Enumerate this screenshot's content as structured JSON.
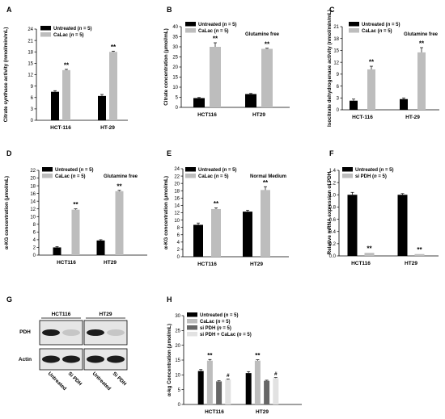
{
  "colors": {
    "black": "#000000",
    "light_grey": "#bdbdbd",
    "dark_grey": "#666666",
    "lighter_grey": "#e2e2e2",
    "blot_bg": "#e6e6e6"
  },
  "panel_letters": [
    "A",
    "B",
    "C",
    "D",
    "E",
    "F",
    "G",
    "H"
  ],
  "chart_data": [
    {
      "id": "A",
      "type": "bar",
      "categories": [
        "HCT-116",
        "HT-29"
      ],
      "series": [
        {
          "name": "Untreated (n = 5)",
          "values": [
            7.5,
            6.4
          ],
          "errors": [
            0.3,
            0.4
          ]
        },
        {
          "name": "CaLac (n = 5)",
          "values": [
            13.2,
            18.0
          ],
          "errors": [
            0.2,
            0.2
          ]
        }
      ],
      "ylabel": "Citrate synthase activity (nmol/min/mL)",
      "ylim": [
        0,
        24
      ],
      "yticks": [
        "0",
        "3",
        "6",
        "9",
        "12",
        "15",
        "18",
        "21",
        "24"
      ],
      "annotations": [
        {
          "cat": 1,
          "series": 1,
          "text": "**"
        },
        {
          "cat": 2,
          "series": 1,
          "text": "**"
        }
      ],
      "note": ""
    },
    {
      "id": "B",
      "type": "bar",
      "categories": [
        "HCT116",
        "HT29"
      ],
      "series": [
        {
          "name": "Untreated (n = 5)",
          "values": [
            4.6,
            6.6
          ],
          "errors": [
            0.3,
            0.3
          ]
        },
        {
          "name": "CaLac (n = 5)",
          "values": [
            30.0,
            29.0
          ],
          "errors": [
            2.0,
            0.3
          ]
        }
      ],
      "ylabel": "Citrate concentration (μmol/mL)",
      "ylim": [
        0,
        40
      ],
      "yticks": [
        "0",
        "5",
        "10",
        "15",
        "20",
        "25",
        "30",
        "35",
        "40"
      ],
      "annotations": [
        {
          "cat": 1,
          "series": 1,
          "text": "**"
        },
        {
          "cat": 2,
          "series": 1,
          "text": "**"
        }
      ],
      "note": "Glutamine free"
    },
    {
      "id": "C",
      "type": "bar",
      "categories": [
        "HCT-116",
        "HT-29"
      ],
      "series": [
        {
          "name": "Untreated (n = 5)",
          "values": [
            2.3,
            2.7
          ],
          "errors": [
            0.4,
            0.3
          ]
        },
        {
          "name": "CaLac (n = 5)",
          "values": [
            10.2,
            14.5
          ],
          "errors": [
            0.8,
            1.2
          ]
        }
      ],
      "ylabel": "Isocitrate dehydrogenase activity (nmol/min/mL)",
      "ylim": [
        0,
        21
      ],
      "yticks": [
        "0",
        "3",
        "6",
        "9",
        "12",
        "15",
        "18",
        "21"
      ],
      "annotations": [
        {
          "cat": 1,
          "series": 1,
          "text": "**"
        },
        {
          "cat": 2,
          "series": 1,
          "text": "**"
        }
      ],
      "note": "Glutamine free"
    },
    {
      "id": "D",
      "type": "bar",
      "categories": [
        "HCT116",
        "HT29"
      ],
      "series": [
        {
          "name": "Untreated (n = 5)",
          "values": [
            2.0,
            3.8
          ],
          "errors": [
            0.2,
            0.2
          ]
        },
        {
          "name": "CaLac (n = 5)",
          "values": [
            11.8,
            16.6
          ],
          "errors": [
            0.2,
            0.2
          ]
        }
      ],
      "ylabel": "α-KG concentration (μmol/mL)",
      "ylim": [
        0,
        22
      ],
      "yticks": [
        "0",
        "2",
        "4",
        "6",
        "8",
        "10",
        "12",
        "14",
        "16",
        "18",
        "20",
        "22"
      ],
      "annotations": [
        {
          "cat": 1,
          "series": 1,
          "text": "**"
        },
        {
          "cat": 2,
          "series": 1,
          "text": "**"
        }
      ],
      "note": "Glutamine free"
    },
    {
      "id": "E",
      "type": "bar",
      "categories": [
        "HCT116",
        "HT29"
      ],
      "series": [
        {
          "name": "Untreated (n = 5)",
          "values": [
            8.7,
            12.3
          ],
          "errors": [
            0.5,
            0.4
          ]
        },
        {
          "name": "CaLac (n = 5)",
          "values": [
            13.0,
            18.2
          ],
          "errors": [
            0.3,
            0.9
          ]
        }
      ],
      "ylabel": "α-KG concentration (μmol/mL)",
      "ylim": [
        0,
        24
      ],
      "yticks": [
        "0",
        "2",
        "4",
        "6",
        "8",
        "10",
        "12",
        "14",
        "16",
        "18",
        "20",
        "22",
        "24"
      ],
      "annotations": [
        {
          "cat": 1,
          "series": 1,
          "text": "**"
        },
        {
          "cat": 2,
          "series": 1,
          "text": "**"
        }
      ],
      "note": "Normal Medium"
    },
    {
      "id": "F",
      "type": "bar",
      "categories": [
        "HCT116",
        "HT29"
      ],
      "series": [
        {
          "name": "Untreated (n = 5)",
          "values": [
            1.0,
            1.0
          ],
          "errors": [
            0.04,
            0.02
          ]
        },
        {
          "name": "si PDH (n = 5)",
          "values": [
            0.05,
            0.03
          ],
          "errors": [
            0.0,
            0.0
          ]
        }
      ],
      "ylabel": "Relative mRNA expression of PDH",
      "ylim": [
        0,
        1.4
      ],
      "yticks": [
        "0.0",
        "0.2",
        "0.4",
        "0.6",
        "0.8",
        "1.0",
        "1.2",
        "1.4"
      ],
      "annotations": [
        {
          "cat": 1,
          "series": 1,
          "text": "**"
        },
        {
          "cat": 2,
          "series": 1,
          "text": "**"
        }
      ],
      "note": ""
    },
    {
      "id": "H",
      "type": "bar",
      "categories": [
        "HCT116",
        "HT29"
      ],
      "series": [
        {
          "name": "Untreated (n = 5)",
          "values": [
            11.3,
            10.6
          ],
          "errors": [
            0.5,
            0.5
          ]
        },
        {
          "name": "CaLac (n = 5)",
          "values": [
            14.8,
            14.8
          ],
          "errors": [
            0.4,
            0.3
          ]
        },
        {
          "name": "si PDH (n = 5)",
          "values": [
            7.8,
            8.0
          ],
          "errors": [
            0.2,
            0.2
          ]
        },
        {
          "name": "si PDH + CaLac (n = 5)",
          "values": [
            8.4,
            8.9
          ],
          "errors": [
            0.2,
            0.2
          ]
        }
      ],
      "ylabel": "α-kg Concentration (μmol/mL)",
      "ylim": [
        0,
        30
      ],
      "yticks": [
        "0",
        "5",
        "10",
        "15",
        "20",
        "25",
        "30"
      ],
      "annotations": [
        {
          "cat": 1,
          "series": 1,
          "text": "**"
        },
        {
          "cat": 1,
          "series": 3,
          "text": "#"
        },
        {
          "cat": 2,
          "series": 1,
          "text": "**"
        },
        {
          "cat": 2,
          "series": 3,
          "text": "#"
        }
      ],
      "note": ""
    }
  ],
  "blot": {
    "cell_lines": [
      "HCT116",
      "HT29"
    ],
    "rows": [
      "PDH",
      "Actin"
    ],
    "lanes": [
      "Untreated",
      "Si PDH",
      "Untreated",
      "Si PDH"
    ]
  }
}
